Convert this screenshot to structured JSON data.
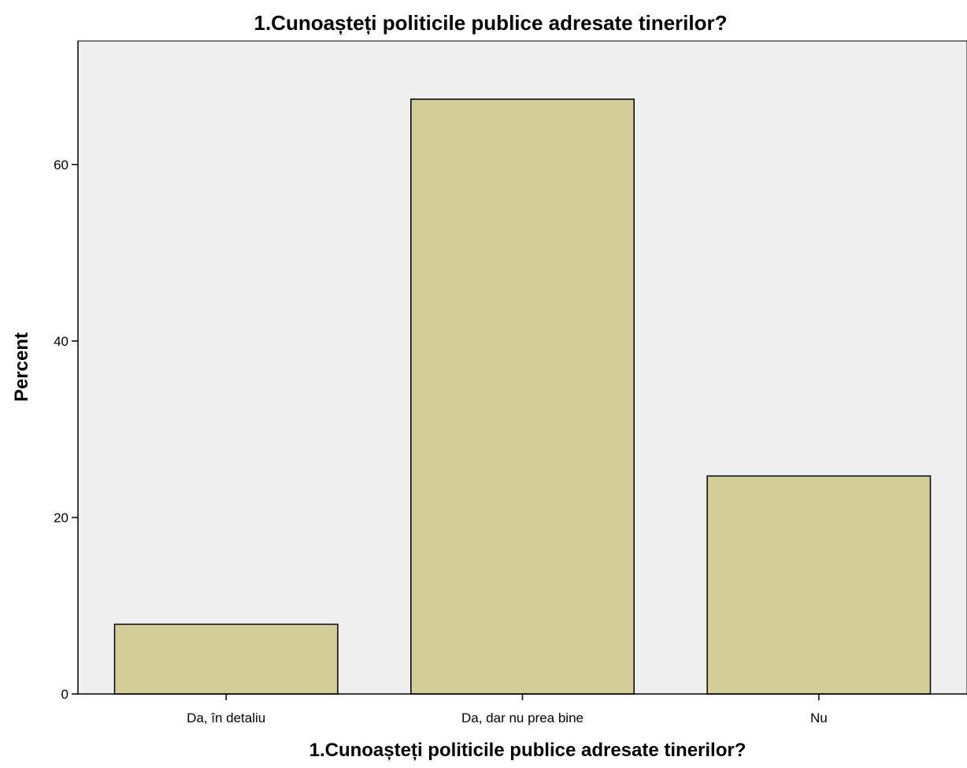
{
  "colors": {
    "plot_background": "#f0f0f0",
    "bar_fill": "#d3cd98",
    "bar_stroke": "#000000",
    "axis": "#000000"
  },
  "chart_data": {
    "type": "bar",
    "title": "1.Cunoașteți politicile publice adresate tinerilor?",
    "xlabel": "1.Cunoașteți politicile publice adresate tinerilor?",
    "ylabel": "Percent",
    "categories": [
      "Da, în detaliu",
      "Da, dar nu prea bine",
      "Nu"
    ],
    "values": [
      7.9,
      67.4,
      24.7
    ],
    "ylim": [
      0,
      74
    ],
    "yticks": [
      0,
      20,
      40,
      60
    ],
    "grid": false,
    "legend": "none"
  }
}
